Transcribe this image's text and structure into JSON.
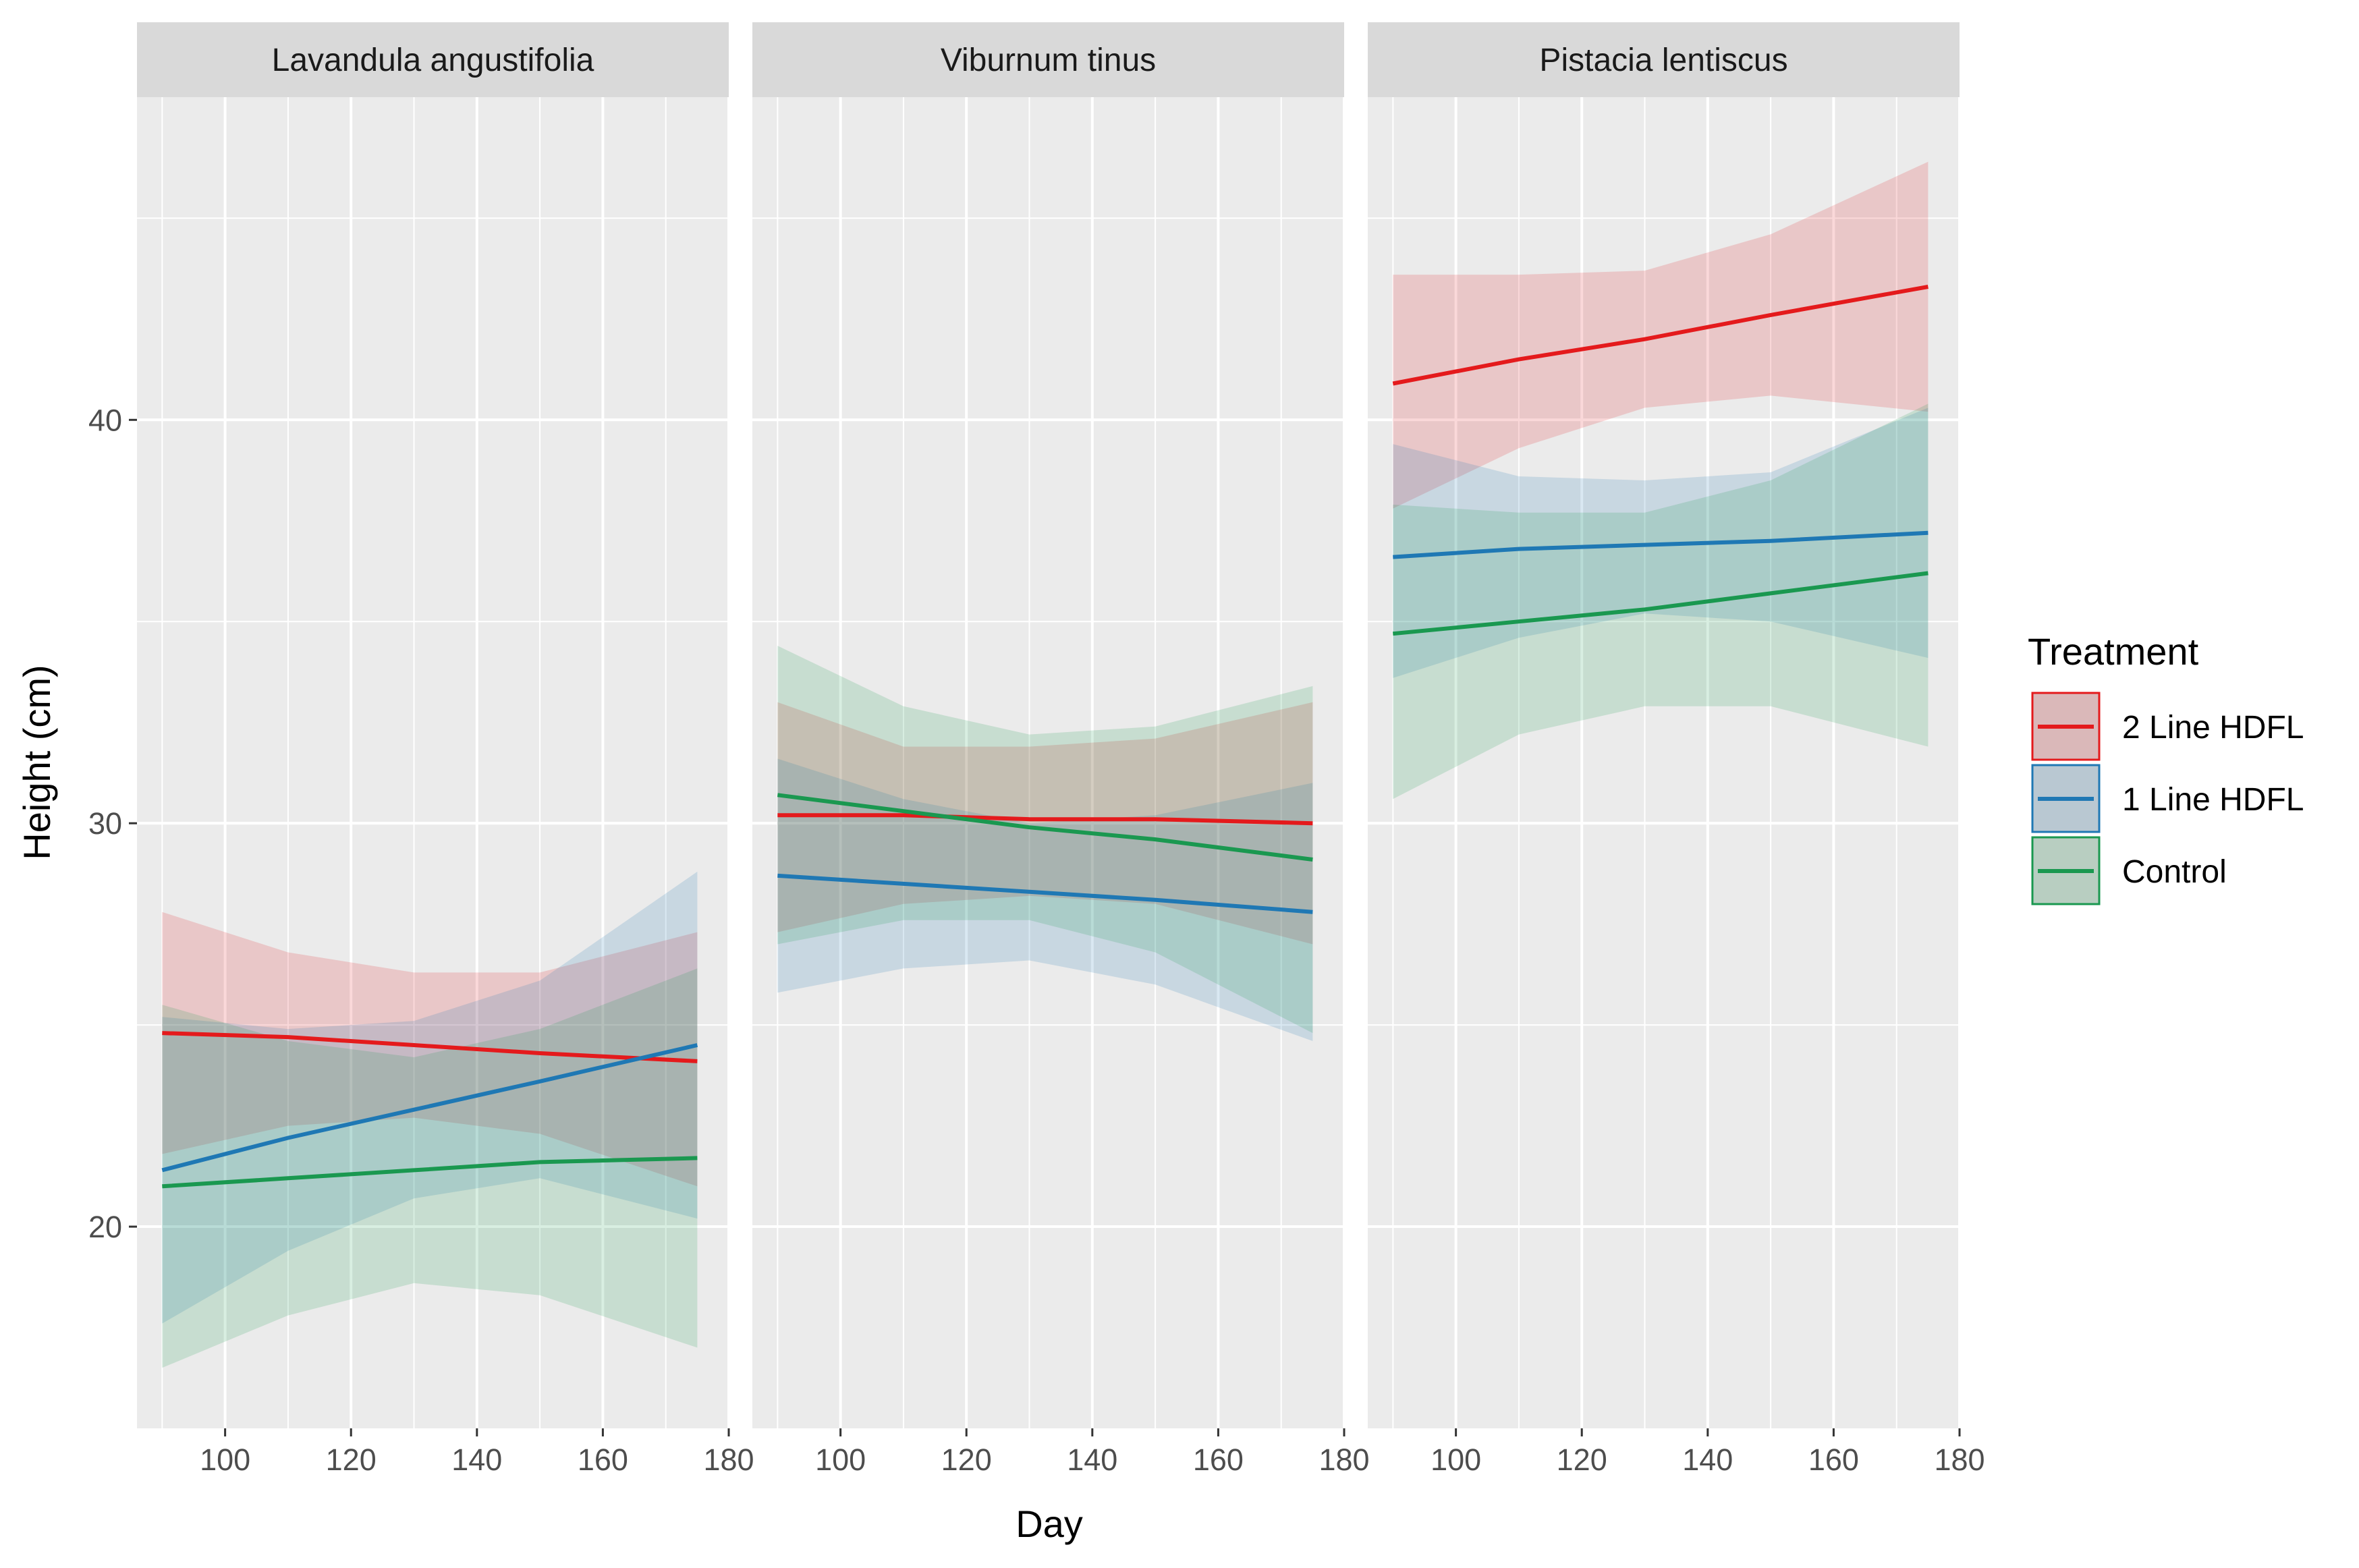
{
  "chart_data": {
    "type": "line",
    "subtype": "faceted linear fit with confidence ribbons",
    "xlabel": "Day",
    "ylabel": "Height (cm)",
    "xlim": [
      86,
      180
    ],
    "ylim": [
      15,
      48
    ],
    "x_ticks": [
      100,
      120,
      140,
      160,
      180
    ],
    "y_ticks": [
      20,
      30,
      40
    ],
    "grid": true,
    "legend": {
      "title": "Treatment",
      "position": "right",
      "entries": [
        "2 Line HDFL",
        "1 Line HDFL",
        "Control"
      ]
    },
    "colors": {
      "2 Line HDFL": "#E41A1C",
      "1 Line HDFL": "#1F78B4",
      "Control": "#1A9850"
    },
    "panels": [
      {
        "title": "Lavandula angustifolia",
        "series": [
          {
            "name": "2 Line HDFL",
            "x": [
              90,
              110,
              130,
              150,
              175
            ],
            "y": [
              24.8,
              24.7,
              24.5,
              24.3,
              24.1
            ],
            "lower": [
              21.8,
              22.5,
              22.7,
              22.3,
              21.0
            ],
            "upper": [
              27.8,
              26.8,
              26.3,
              26.3,
              27.3
            ]
          },
          {
            "name": "1 Line HDFL",
            "x": [
              90,
              110,
              130,
              150,
              175
            ],
            "y": [
              21.4,
              22.2,
              22.9,
              23.6,
              24.5
            ],
            "lower": [
              17.6,
              19.4,
              20.7,
              21.2,
              20.2
            ],
            "upper": [
              25.2,
              24.9,
              25.1,
              26.1,
              28.8
            ]
          },
          {
            "name": "Control",
            "x": [
              90,
              110,
              130,
              150,
              175
            ],
            "y": [
              21.0,
              21.2,
              21.4,
              21.6,
              21.7
            ],
            "lower": [
              16.5,
              17.8,
              18.6,
              18.3,
              17.0
            ],
            "upper": [
              25.5,
              24.6,
              24.2,
              24.9,
              26.4
            ]
          }
        ]
      },
      {
        "title": "Viburnum tinus",
        "series": [
          {
            "name": "2 Line HDFL",
            "x": [
              90,
              110,
              130,
              150,
              175
            ],
            "y": [
              30.2,
              30.2,
              30.1,
              30.1,
              30.0
            ],
            "lower": [
              27.3,
              28.0,
              28.2,
              28.0,
              27.0
            ],
            "upper": [
              33.0,
              31.9,
              31.9,
              32.1,
              33.0
            ]
          },
          {
            "name": "1 Line HDFL",
            "x": [
              90,
              110,
              130,
              150,
              175
            ],
            "y": [
              28.7,
              28.5,
              28.3,
              28.1,
              27.8
            ],
            "lower": [
              25.8,
              26.4,
              26.6,
              26.0,
              24.6
            ],
            "upper": [
              31.6,
              30.6,
              30.0,
              30.2,
              31.0
            ]
          },
          {
            "name": "Control",
            "x": [
              90,
              110,
              130,
              150,
              175
            ],
            "y": [
              30.7,
              30.3,
              29.9,
              29.6,
              29.1
            ],
            "lower": [
              27.0,
              27.6,
              27.6,
              26.8,
              24.8
            ],
            "upper": [
              34.4,
              32.9,
              32.2,
              32.4,
              33.4
            ]
          }
        ]
      },
      {
        "title": "Pistacia lentiscus",
        "series": [
          {
            "name": "2 Line HDFL",
            "x": [
              90,
              110,
              130,
              150,
              175
            ],
            "y": [
              40.9,
              41.5,
              42.0,
              42.6,
              43.3
            ],
            "lower": [
              37.8,
              39.3,
              40.3,
              40.6,
              40.2
            ],
            "upper": [
              43.6,
              43.6,
              43.7,
              44.6,
              46.4
            ]
          },
          {
            "name": "1 Line HDFL",
            "x": [
              90,
              110,
              130,
              150,
              175
            ],
            "y": [
              36.6,
              36.8,
              36.9,
              37.0,
              37.2
            ],
            "lower": [
              33.6,
              34.6,
              35.2,
              35.0,
              34.1
            ],
            "upper": [
              39.4,
              38.6,
              38.5,
              38.7,
              40.3
            ]
          },
          {
            "name": "Control",
            "x": [
              90,
              110,
              130,
              150,
              175
            ],
            "y": [
              34.7,
              35.0,
              35.3,
              35.7,
              36.2
            ],
            "lower": [
              30.6,
              32.2,
              32.9,
              32.9,
              31.9
            ],
            "upper": [
              37.9,
              37.7,
              37.7,
              38.5,
              40.4
            ]
          }
        ]
      }
    ]
  }
}
